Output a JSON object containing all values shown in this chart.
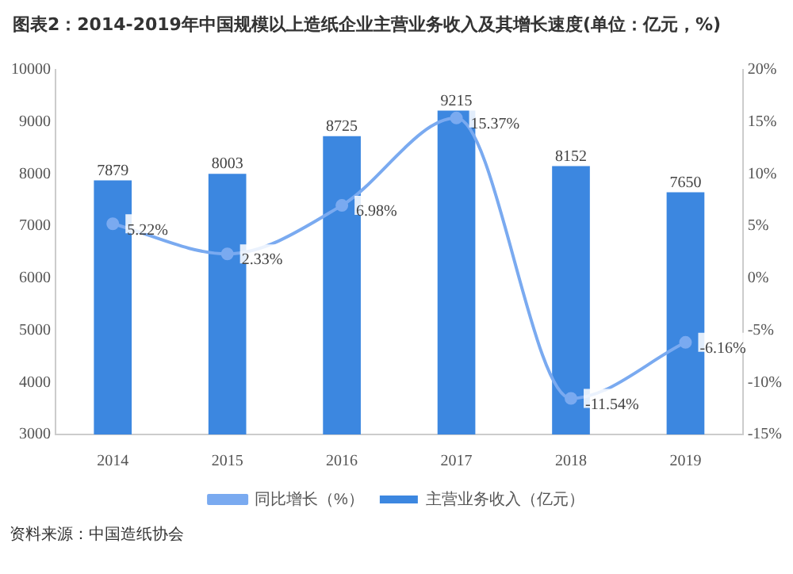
{
  "chart_data": {
    "type": "bar",
    "title": "图表2：2014-2019年中国规模以上造纸企业主营业务收入及其增长速度(单位：亿元，%)",
    "categories": [
      "2014",
      "2015",
      "2016",
      "2017",
      "2018",
      "2019"
    ],
    "series": [
      {
        "name": "主营业务收入（亿元）",
        "color": "#3c87e0",
        "values": [
          7879,
          8003,
          8725,
          9215,
          8152,
          7650
        ],
        "value_labels": [
          "7879",
          "8003",
          "8725",
          "9215",
          "8152",
          "7650"
        ]
      },
      {
        "name": "同比增长（%）",
        "type": "line",
        "axis": "y2",
        "color": "#7aaaf0",
        "values": [
          5.22,
          2.33,
          6.98,
          15.37,
          -11.54,
          -6.16
        ],
        "value_labels": [
          "5.22%",
          "2.33%",
          "6.98%",
          "15.37%",
          "-11.54%",
          "-6.16%"
        ],
        "marker": "circle"
      }
    ],
    "ylim": [
      3000,
      10000
    ],
    "yticks": [
      3000,
      4000,
      5000,
      6000,
      7000,
      8000,
      9000,
      10000
    ],
    "y2lim": [
      -15,
      20
    ],
    "y2ticks": [
      {
        "value": -15,
        "label": "-15%"
      },
      {
        "value": -10,
        "label": "-10%"
      },
      {
        "value": -5,
        "label": "-5%"
      },
      {
        "value": 0,
        "label": "0%"
      },
      {
        "value": 5,
        "label": "5%"
      },
      {
        "value": 10,
        "label": "10%"
      },
      {
        "value": 15,
        "label": "15%"
      },
      {
        "value": 20,
        "label": "20%"
      }
    ],
    "grid": false,
    "legend": "bottom",
    "annotations": [
      "资料来源：中国造纸协会"
    ]
  }
}
